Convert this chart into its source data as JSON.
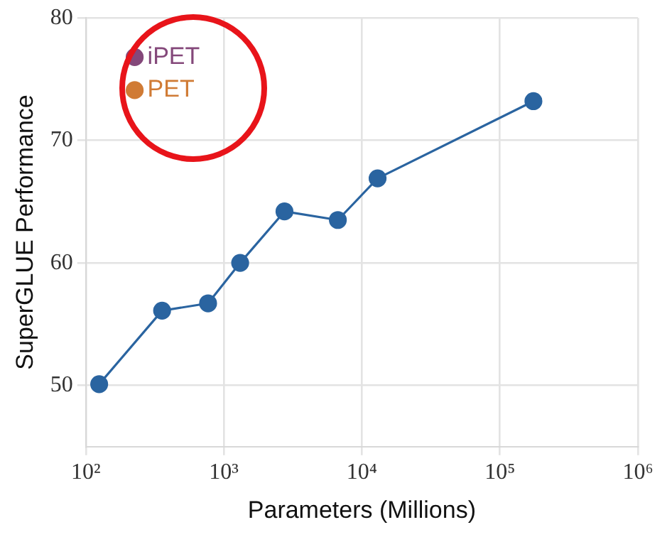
{
  "chart_data": {
    "type": "line",
    "xlabel": "Parameters (Millions)",
    "ylabel": "SuperGLUE Performance",
    "log": "x",
    "xlim": [
      100,
      1000000
    ],
    "xticks": [
      {
        "value": 100,
        "label": "10²"
      },
      {
        "value": 1000,
        "label": "10³"
      },
      {
        "value": 10000,
        "label": "10⁴"
      },
      {
        "value": 100000,
        "label": "10⁵"
      },
      {
        "value": 1000000,
        "label": "10⁶"
      }
    ],
    "ylim": [
      45,
      80
    ],
    "yticks": [
      50,
      60,
      70,
      80
    ],
    "grid": true,
    "legend": false,
    "marker": "circle",
    "line_style": "solid",
    "series": [
      {
        "color": "#2a64a0",
        "x": [
          125,
          357,
          769,
          1313,
          2750,
          6700,
          13000,
          175000
        ],
        "values": [
          50.1,
          56.1,
          56.7,
          60.0,
          64.2,
          63.5,
          66.9,
          73.2
        ]
      },
      {
        "type": "scatter",
        "name": "iPET",
        "color": "#84487a",
        "x": [
          226
        ],
        "values": [
          76.8
        ]
      },
      {
        "type": "scatter",
        "name": "PET",
        "color": "#d07b35",
        "x": [
          226
        ],
        "values": [
          74.1
        ]
      }
    ]
  }
}
